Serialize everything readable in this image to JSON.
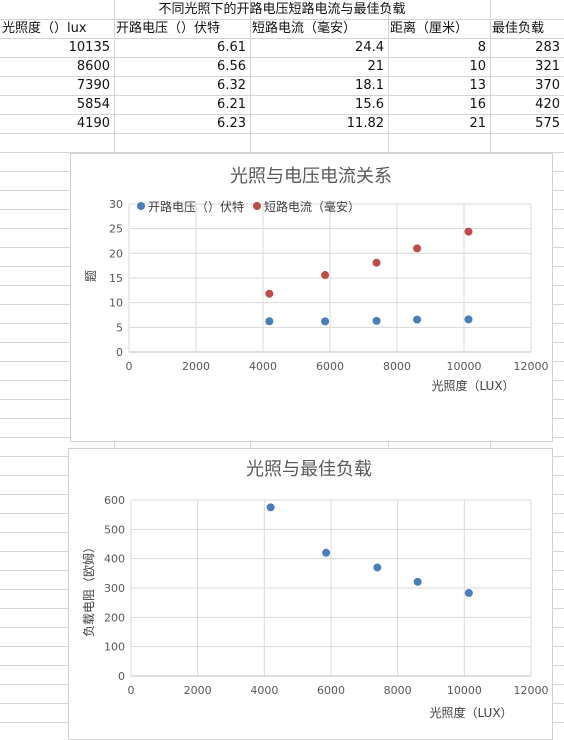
{
  "sheet": {
    "title": "不同光照下的开路电压短路电流与最佳负载",
    "headers": [
      "光照度（）lux",
      "开路电压（）伏特",
      "短路电流（毫安）",
      "距离（厘米）",
      "最佳负载"
    ],
    "rows": [
      [
        "10135",
        "6.61",
        "24.4",
        "8",
        "283"
      ],
      [
        "8600",
        "6.56",
        "21",
        "10",
        "321"
      ],
      [
        "7390",
        "6.32",
        "18.1",
        "13",
        "370"
      ],
      [
        "5854",
        "6.21",
        "15.6",
        "16",
        "420"
      ],
      [
        "4190",
        "6.23",
        "11.82",
        "21",
        "575"
      ]
    ]
  },
  "chart_data": [
    {
      "type": "scatter",
      "title": "光照与电压电流关系",
      "xlabel": "光照度（LUX）",
      "ylabel": "题",
      "xlim": [
        0,
        12000
      ],
      "ylim": [
        0,
        30
      ],
      "xticks": [
        0,
        2000,
        4000,
        6000,
        8000,
        10000,
        12000
      ],
      "yticks": [
        0,
        5,
        10,
        15,
        20,
        25,
        30
      ],
      "grid": true,
      "legend": "top-left",
      "series": [
        {
          "name": "开路电压（）伏特",
          "color": "#4a7ebb",
          "x": [
            10135,
            8600,
            7390,
            5854,
            4190
          ],
          "y": [
            6.61,
            6.56,
            6.32,
            6.21,
            6.23
          ]
        },
        {
          "name": "短路电流（毫安）",
          "color": "#be4b48",
          "x": [
            10135,
            8600,
            7390,
            5854,
            4190
          ],
          "y": [
            24.4,
            21,
            18.1,
            15.6,
            11.82
          ]
        }
      ]
    },
    {
      "type": "scatter",
      "title": "光照与最佳负载",
      "xlabel": "光照度（LUX）",
      "ylabel": "负载电阻（欧姆）",
      "xlim": [
        0,
        12000
      ],
      "ylim": [
        0,
        600
      ],
      "xticks": [
        0,
        2000,
        4000,
        6000,
        8000,
        10000,
        12000
      ],
      "yticks": [
        0,
        100,
        200,
        300,
        400,
        500,
        600
      ],
      "grid": true,
      "legend": "none",
      "series": [
        {
          "color": "#4a7ebb",
          "x": [
            10135,
            8600,
            7390,
            5854,
            4190
          ],
          "y": [
            283,
            321,
            370,
            420,
            575
          ]
        }
      ]
    }
  ]
}
